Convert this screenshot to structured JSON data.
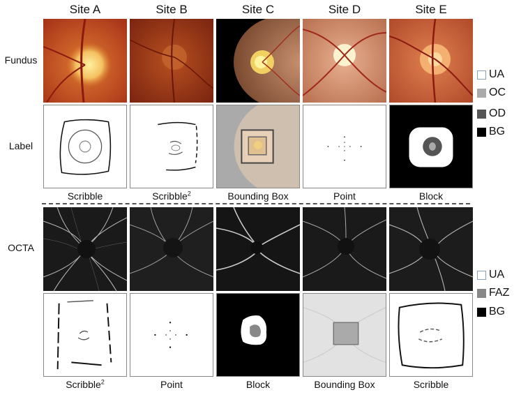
{
  "sites": [
    "Site A",
    "Site B",
    "Site C",
    "Site D",
    "Site E"
  ],
  "row_labels": {
    "fundus": "Fundus",
    "label": "Label",
    "octa": "OCTA"
  },
  "fundus_captions": [
    {
      "text": "Scribble",
      "sup": ""
    },
    {
      "text": "Scribble",
      "sup": "2"
    },
    {
      "text": "Bounding Box",
      "sup": ""
    },
    {
      "text": "Point",
      "sup": ""
    },
    {
      "text": "Block",
      "sup": ""
    }
  ],
  "octa_captions": [
    {
      "text": "Scribble",
      "sup": "2"
    },
    {
      "text": "Point",
      "sup": ""
    },
    {
      "text": "Block",
      "sup": ""
    },
    {
      "text": "Bounding Box",
      "sup": ""
    },
    {
      "text": "Scribble",
      "sup": ""
    }
  ],
  "legend_top": [
    {
      "label": "UA",
      "color": "#ffffff"
    },
    {
      "label": "OC",
      "color": "#aaaaaa"
    },
    {
      "label": "OD",
      "color": "#555555"
    },
    {
      "label": "BG",
      "color": "#000000"
    }
  ],
  "legend_bottom": [
    {
      "label": "UA",
      "color": "#ffffff"
    },
    {
      "label": "FAZ",
      "color": "#888888"
    },
    {
      "label": "BG",
      "color": "#000000"
    }
  ]
}
